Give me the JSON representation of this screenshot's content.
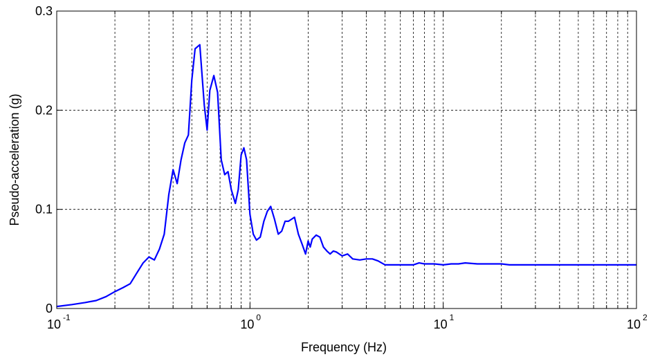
{
  "chart_data": {
    "type": "line",
    "xlabel": "Frequency (Hz)",
    "ylabel": "Pseudo-acceleration (g)",
    "xscale": "log",
    "xlim": [
      0.1,
      100
    ],
    "ylim": [
      0,
      0.3
    ],
    "grid": true,
    "x_ticks": [
      {
        "base": "10",
        "exp": "-1",
        "value": 0.1
      },
      {
        "base": "10",
        "exp": "0",
        "value": 1
      },
      {
        "base": "10",
        "exp": "1",
        "value": 10
      },
      {
        "base": "10",
        "exp": "2",
        "value": 100
      }
    ],
    "y_ticks": [
      {
        "label": "0",
        "value": 0
      },
      {
        "label": "0.1",
        "value": 0.1
      },
      {
        "label": "0.2",
        "value": 0.2
      },
      {
        "label": "0.3",
        "value": 0.3
      }
    ],
    "series": [
      {
        "color": "#0000ff",
        "x": [
          0.1,
          0.12,
          0.14,
          0.16,
          0.18,
          0.2,
          0.22,
          0.24,
          0.26,
          0.28,
          0.3,
          0.32,
          0.34,
          0.36,
          0.38,
          0.4,
          0.42,
          0.44,
          0.46,
          0.48,
          0.5,
          0.52,
          0.55,
          0.58,
          0.6,
          0.62,
          0.65,
          0.68,
          0.71,
          0.74,
          0.77,
          0.8,
          0.84,
          0.87,
          0.9,
          0.93,
          0.96,
          1.0,
          1.04,
          1.08,
          1.13,
          1.18,
          1.23,
          1.28,
          1.34,
          1.4,
          1.46,
          1.52,
          1.58,
          1.64,
          1.7,
          1.78,
          1.86,
          1.94,
          2.0,
          2.05,
          2.1,
          2.2,
          2.3,
          2.4,
          2.5,
          2.6,
          2.7,
          2.8,
          3.0,
          3.2,
          3.4,
          3.7,
          4.0,
          4.3,
          4.6,
          5.0,
          5.5,
          6.0,
          7.0,
          7.5,
          8.0,
          9.0,
          10.0,
          11.0,
          12.0,
          13.0,
          15.0,
          17.0,
          20.0,
          22.0,
          25.0,
          30.0,
          40.0,
          50.0,
          70.0,
          100.0
        ],
        "y": [
          0.002,
          0.004,
          0.006,
          0.008,
          0.012,
          0.017,
          0.021,
          0.025,
          0.036,
          0.046,
          0.052,
          0.049,
          0.06,
          0.075,
          0.115,
          0.14,
          0.126,
          0.15,
          0.167,
          0.175,
          0.23,
          0.262,
          0.266,
          0.205,
          0.18,
          0.22,
          0.235,
          0.218,
          0.15,
          0.135,
          0.138,
          0.12,
          0.106,
          0.12,
          0.155,
          0.162,
          0.15,
          0.095,
          0.075,
          0.069,
          0.072,
          0.088,
          0.098,
          0.103,
          0.09,
          0.075,
          0.078,
          0.088,
          0.088,
          0.09,
          0.092,
          0.075,
          0.065,
          0.055,
          0.068,
          0.062,
          0.07,
          0.074,
          0.072,
          0.062,
          0.058,
          0.055,
          0.058,
          0.057,
          0.053,
          0.055,
          0.05,
          0.049,
          0.05,
          0.05,
          0.048,
          0.044,
          0.044,
          0.044,
          0.044,
          0.046,
          0.045,
          0.045,
          0.044,
          0.045,
          0.045,
          0.046,
          0.045,
          0.045,
          0.045,
          0.044,
          0.044,
          0.044,
          0.044,
          0.044,
          0.044,
          0.044
        ]
      }
    ]
  }
}
